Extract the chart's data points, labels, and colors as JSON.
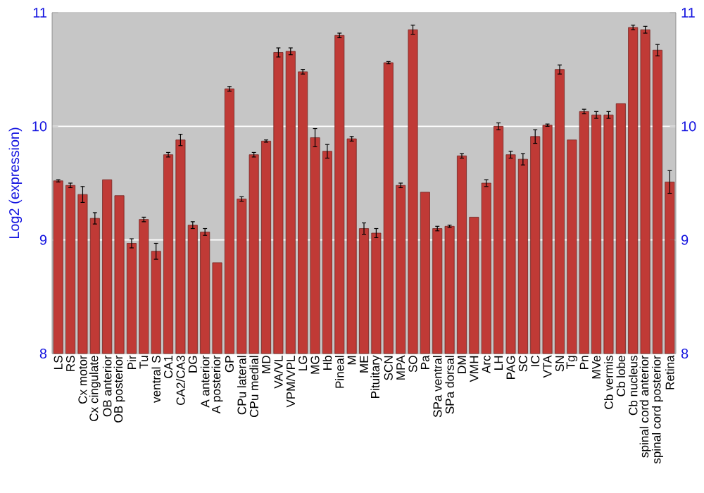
{
  "chart_data": {
    "type": "bar",
    "ylabel": "Log2 (expression)",
    "categories": [
      "LS",
      "RS",
      "Cx motor",
      "Cx cingulate",
      "OB anterior",
      "OB posterior",
      "Pir",
      "Tu",
      "ventral S",
      "CA1",
      "CA2/CA3",
      "DG",
      "A anterior",
      "A posterior",
      "GP",
      "CPu lateral",
      "CPu medial",
      "MD",
      "VA/VL",
      "VPM/VPL",
      "LG",
      "MG",
      "Hb",
      "Pineal",
      "M",
      "ME",
      "Pituitary",
      "SCN",
      "MPA",
      "SO",
      "Pa",
      "SPa ventral",
      "SPa dorsal",
      "DM",
      "VMH",
      "Arc",
      "LH",
      "PAG",
      "SC",
      "IC",
      "VTA",
      "SN",
      "Tg",
      "Pn",
      "MVe",
      "Cb vermis",
      "Cb lobe",
      "Cb nucleus",
      "spinal cord anterior",
      "spinal cord posterior",
      "Retina"
    ],
    "values": [
      9.52,
      9.48,
      9.4,
      9.19,
      9.53,
      9.39,
      8.97,
      9.18,
      8.9,
      9.75,
      9.88,
      9.13,
      9.07,
      8.8,
      10.33,
      9.36,
      9.75,
      9.87,
      10.65,
      10.66,
      10.48,
      9.9,
      9.78,
      10.8,
      9.89,
      9.1,
      9.06,
      10.56,
      9.48,
      10.85,
      9.42,
      9.1,
      9.12,
      9.74,
      9.2,
      9.5,
      10.0,
      9.75,
      9.71,
      9.91,
      10.01,
      10.5,
      9.88,
      10.13,
      10.1,
      10.1,
      10.2,
      10.87,
      10.85,
      10.67,
      9.51
    ],
    "errors": [
      0.01,
      0.02,
      0.07,
      0.05,
      null,
      null,
      0.04,
      0.02,
      0.07,
      0.02,
      0.05,
      0.03,
      0.03,
      null,
      0.02,
      0.02,
      0.02,
      0.01,
      0.04,
      0.03,
      0.02,
      0.08,
      0.06,
      0.02,
      0.02,
      0.05,
      0.04,
      0.01,
      0.02,
      0.04,
      null,
      0.02,
      0.01,
      0.02,
      null,
      0.03,
      0.03,
      0.03,
      0.05,
      0.06,
      0.01,
      0.04,
      null,
      0.02,
      0.03,
      0.03,
      null,
      0.02,
      0.03,
      0.05,
      0.1
    ],
    "color": "#c03a36",
    "ylim": [
      8,
      11
    ],
    "yticks": [
      8,
      9,
      10,
      11
    ],
    "y2lim": [
      8,
      11
    ],
    "y2ticks": [
      8,
      9,
      10,
      11
    ],
    "grid": "y"
  }
}
